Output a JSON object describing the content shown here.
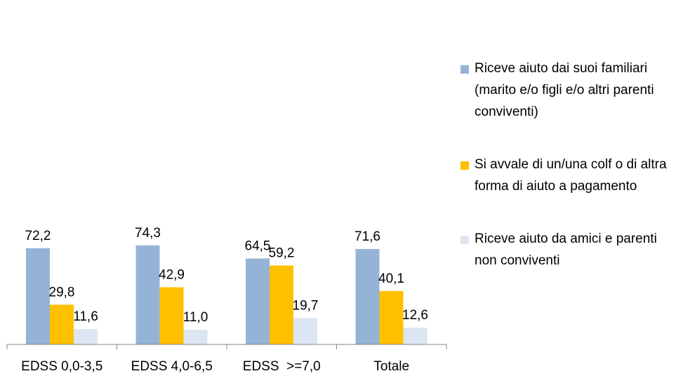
{
  "chart_data": {
    "type": "bar",
    "categories": [
      "EDSS 0,0-3,5",
      "EDSS 4,0-6,5",
      "EDSS  >=7,0",
      "Totale"
    ],
    "series": [
      {
        "name": "Riceve aiuto dai suoi familiari (marito e/o figli e/o altri parenti conviventi)",
        "color": "#95b3d7",
        "values": [
          72.2,
          74.3,
          64.5,
          71.6
        ],
        "labels": [
          "72,2",
          "74,3",
          "64,5",
          "71,6"
        ]
      },
      {
        "name": "Si avvale di un/una colf o di altra forma di aiuto a pagamento",
        "color": "#ffc000",
        "values": [
          29.8,
          42.9,
          59.2,
          40.1
        ],
        "labels": [
          "29,8",
          "42,9",
          "59,2",
          "40,1"
        ]
      },
      {
        "name": "Riceve aiuto da amici e parenti non conviventi",
        "color": "#dce6f2",
        "values": [
          11.6,
          11.0,
          19.7,
          12.6
        ],
        "labels": [
          "11,6",
          "11,0",
          "19,7",
          "12,6"
        ]
      }
    ],
    "ylim": [
      0,
      80
    ],
    "grid": false,
    "legend_position": "right"
  }
}
